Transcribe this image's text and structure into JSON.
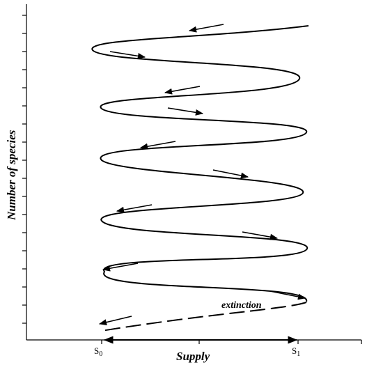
{
  "figure": {
    "ylabel": "Number of species",
    "xlabel": "Supply",
    "x_ticks": [
      "S0",
      "S1"
    ],
    "annotation": "extinction",
    "line_color": "#000000",
    "background": "#ffffff"
  }
}
